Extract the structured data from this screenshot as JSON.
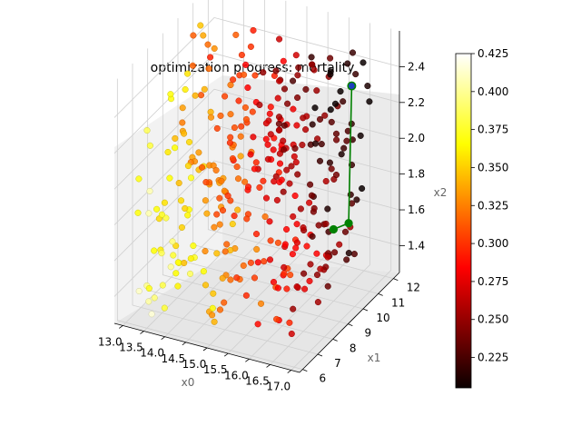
{
  "chart_data": {
    "type": "scatter",
    "title": "optimization progress: mortality",
    "xlabel": "x0",
    "ylabel": "x1",
    "zlabel": "x2",
    "x_ticks": [
      "13.0",
      "13.5",
      "14.0",
      "14.5",
      "15.0",
      "15.5",
      "16.0",
      "16.5",
      "17.0"
    ],
    "y_ticks": [
      "6",
      "7",
      "8",
      "9",
      "10",
      "11",
      "12"
    ],
    "z_ticks": [
      "1.4",
      "1.6",
      "1.8",
      "2.0",
      "2.2",
      "2.4"
    ],
    "xlim": [
      12.8,
      17.2
    ],
    "ylim": [
      5.8,
      12.4
    ],
    "zlim": [
      1.25,
      2.6
    ],
    "grid": true,
    "colorbar": {
      "colormap": "hot",
      "range": [
        0.205,
        0.425
      ],
      "tick_labels": [
        "0.425",
        "0.400",
        "0.375",
        "0.350",
        "0.325",
        "0.300",
        "0.275",
        "0.250",
        "0.225"
      ],
      "tick_values": [
        0.425,
        0.4,
        0.375,
        0.35,
        0.325,
        0.3,
        0.275,
        0.25,
        0.225
      ]
    },
    "series": [
      {
        "kind": "scatter",
        "value_range": [
          0.205,
          0.425
        ],
        "notes_count": 360
      },
      {
        "kind": "optimization path",
        "color": "#008000",
        "marker_color": "#008000",
        "best_point_color": "#1f3fbf",
        "points": [
          {
            "x": 17.0,
            "y": 8.6,
            "z": 1.8
          },
          {
            "x": 17.0,
            "y": 9.6,
            "z": 1.75
          },
          {
            "x": 17.0,
            "y": 9.8,
            "z": 2.5
          }
        ]
      }
    ]
  }
}
